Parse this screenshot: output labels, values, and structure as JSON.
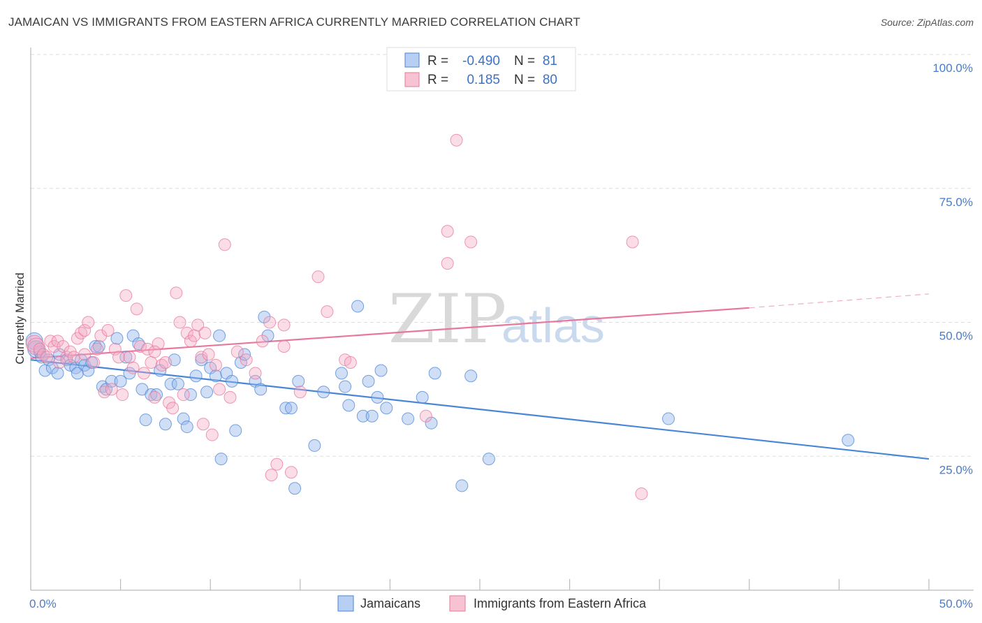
{
  "title": "JAMAICAN VS IMMIGRANTS FROM EASTERN AFRICA CURRENTLY MARRIED CORRELATION CHART",
  "source": "Source: ZipAtlas.com",
  "watermark": {
    "zip": "ZIP",
    "atlas": "atlas"
  },
  "legend_top": {
    "r_label": "R =",
    "n_label": "N =",
    "rows": [
      {
        "r": "-0.490",
        "n": "81",
        "color": "#4a86d8",
        "fill": "#b7cff2"
      },
      {
        "r": "0.185",
        "n": "80",
        "color": "#e8779c",
        "fill": "#f7c3d3"
      }
    ]
  },
  "legend_bottom": [
    {
      "label": "Jamaicans",
      "fill": "#b7cff2",
      "stroke": "#4a86d8"
    },
    {
      "label": "Immigrants from Eastern Africa",
      "fill": "#f7c3d3",
      "stroke": "#e8779c"
    }
  ],
  "chart_data": {
    "type": "scatter",
    "xlabel": "",
    "ylabel": "Currently Married",
    "xlim": [
      0,
      50
    ],
    "ylim": [
      0,
      100
    ],
    "x_tick_labels": [
      "0.0%",
      "50.0%"
    ],
    "y_tick_labels": [
      "100.0%",
      "75.0%",
      "50.0%",
      "25.0%"
    ],
    "y_ticks": [
      100,
      75,
      50,
      25
    ],
    "grid": true,
    "series": [
      {
        "name": "Jamaicans",
        "color": "#4a86d8",
        "trend": {
          "x0": 0,
          "y0": 43.0,
          "x1": 50,
          "y1": 24.5
        },
        "points": [
          [
            0.2,
            46.5
          ],
          [
            0.3,
            45.0
          ],
          [
            0.5,
            44.5
          ],
          [
            0.6,
            43.5
          ],
          [
            0.8,
            41.0
          ],
          [
            1.0,
            43.0
          ],
          [
            1.2,
            41.5
          ],
          [
            1.5,
            40.5
          ],
          [
            1.6,
            44.0
          ],
          [
            2.0,
            43.0
          ],
          [
            2.2,
            42.0
          ],
          [
            2.5,
            41.5
          ],
          [
            2.6,
            40.5
          ],
          [
            2.8,
            43.0
          ],
          [
            3.0,
            42.0
          ],
          [
            3.2,
            41.0
          ],
          [
            3.4,
            42.5
          ],
          [
            3.6,
            45.5
          ],
          [
            3.8,
            45.5
          ],
          [
            4.0,
            38.0
          ],
          [
            4.2,
            37.5
          ],
          [
            4.5,
            39.0
          ],
          [
            4.8,
            47.0
          ],
          [
            5.0,
            39.0
          ],
          [
            5.3,
            43.5
          ],
          [
            5.5,
            40.5
          ],
          [
            5.7,
            47.5
          ],
          [
            6.0,
            46.0
          ],
          [
            6.2,
            37.5
          ],
          [
            6.4,
            31.8
          ],
          [
            6.7,
            36.5
          ],
          [
            7.0,
            36.5
          ],
          [
            7.2,
            41.0
          ],
          [
            7.5,
            31.0
          ],
          [
            7.8,
            38.5
          ],
          [
            8.0,
            43.0
          ],
          [
            8.2,
            38.5
          ],
          [
            8.5,
            32.0
          ],
          [
            8.7,
            30.5
          ],
          [
            8.9,
            36.5
          ],
          [
            9.2,
            40.0
          ],
          [
            9.5,
            43.0
          ],
          [
            9.8,
            37.0
          ],
          [
            10.0,
            41.5
          ],
          [
            10.3,
            40.0
          ],
          [
            10.5,
            47.5
          ],
          [
            10.6,
            24.5
          ],
          [
            10.9,
            40.5
          ],
          [
            11.2,
            39.0
          ],
          [
            11.4,
            29.8
          ],
          [
            11.7,
            42.5
          ],
          [
            11.9,
            44.0
          ],
          [
            12.5,
            39.0
          ],
          [
            12.8,
            37.5
          ],
          [
            13.0,
            51.0
          ],
          [
            13.2,
            47.5
          ],
          [
            14.2,
            34.0
          ],
          [
            14.5,
            34.0
          ],
          [
            14.7,
            19.0
          ],
          [
            14.9,
            39.0
          ],
          [
            15.8,
            27.0
          ],
          [
            16.3,
            37.0
          ],
          [
            17.3,
            40.5
          ],
          [
            17.5,
            38.0
          ],
          [
            17.7,
            34.5
          ],
          [
            18.2,
            53.0
          ],
          [
            18.5,
            32.5
          ],
          [
            18.8,
            39.0
          ],
          [
            19.0,
            32.5
          ],
          [
            19.3,
            36.0
          ],
          [
            19.5,
            41.0
          ],
          [
            19.8,
            34.0
          ],
          [
            21.0,
            32.0
          ],
          [
            21.8,
            36.0
          ],
          [
            22.3,
            31.2
          ],
          [
            22.5,
            40.5
          ],
          [
            24.0,
            19.5
          ],
          [
            24.5,
            40.0
          ],
          [
            25.5,
            24.5
          ],
          [
            35.5,
            32.0
          ],
          [
            45.5,
            28.0
          ]
        ]
      },
      {
        "name": "Immigrants from Eastern Africa",
        "color": "#e8779c",
        "trend": {
          "x0": 0,
          "y0": 43.3,
          "x1": 40,
          "y1": 52.7,
          "dash_to_x": 50,
          "dash_to_y": 55.3
        },
        "points": [
          [
            0.2,
            46.0
          ],
          [
            0.3,
            45.5
          ],
          [
            0.5,
            45.0
          ],
          [
            0.7,
            44.0
          ],
          [
            0.9,
            43.5
          ],
          [
            1.1,
            46.5
          ],
          [
            1.3,
            45.5
          ],
          [
            1.5,
            46.5
          ],
          [
            1.8,
            45.5
          ],
          [
            2.0,
            43.5
          ],
          [
            2.2,
            44.5
          ],
          [
            2.4,
            43.5
          ],
          [
            2.6,
            47.0
          ],
          [
            2.8,
            48.0
          ],
          [
            3.0,
            48.5
          ],
          [
            3.2,
            50.0
          ],
          [
            3.5,
            42.5
          ],
          [
            3.7,
            45.0
          ],
          [
            3.9,
            47.5
          ],
          [
            4.1,
            37.0
          ],
          [
            4.3,
            48.5
          ],
          [
            4.5,
            37.5
          ],
          [
            4.7,
            45.0
          ],
          [
            4.9,
            43.5
          ],
          [
            5.1,
            36.5
          ],
          [
            5.3,
            55.0
          ],
          [
            5.5,
            43.5
          ],
          [
            5.7,
            41.5
          ],
          [
            5.9,
            52.5
          ],
          [
            6.1,
            45.5
          ],
          [
            6.3,
            40.5
          ],
          [
            6.5,
            45.0
          ],
          [
            6.7,
            42.5
          ],
          [
            6.9,
            36.0
          ],
          [
            7.1,
            46.0
          ],
          [
            7.3,
            42.0
          ],
          [
            7.5,
            42.5
          ],
          [
            7.7,
            35.0
          ],
          [
            7.9,
            34.0
          ],
          [
            8.1,
            55.5
          ],
          [
            8.3,
            50.0
          ],
          [
            8.5,
            36.5
          ],
          [
            8.7,
            48.0
          ],
          [
            8.9,
            46.5
          ],
          [
            9.1,
            47.5
          ],
          [
            9.3,
            49.5
          ],
          [
            9.5,
            43.5
          ],
          [
            9.7,
            48.0
          ],
          [
            9.9,
            44.0
          ],
          [
            10.1,
            29.0
          ],
          [
            10.3,
            42.0
          ],
          [
            10.5,
            37.5
          ],
          [
            10.8,
            64.5
          ],
          [
            11.1,
            36.0
          ],
          [
            11.5,
            44.5
          ],
          [
            12.0,
            43.0
          ],
          [
            12.5,
            40.5
          ],
          [
            12.9,
            46.5
          ],
          [
            13.3,
            50.0
          ],
          [
            13.7,
            23.5
          ],
          [
            13.4,
            21.5
          ],
          [
            14.1,
            49.5
          ],
          [
            14.1,
            45.5
          ],
          [
            14.5,
            22.0
          ],
          [
            15.0,
            37.0
          ],
          [
            16.0,
            58.5
          ],
          [
            16.5,
            52.0
          ],
          [
            17.5,
            43.0
          ],
          [
            17.8,
            42.5
          ],
          [
            22.0,
            32.5
          ],
          [
            23.2,
            67.0
          ],
          [
            23.2,
            61.0
          ],
          [
            23.7,
            84.0
          ],
          [
            24.5,
            65.0
          ],
          [
            33.5,
            65.0
          ],
          [
            34.0,
            18.0
          ],
          [
            9.6,
            31.0
          ],
          [
            6.9,
            44.5
          ],
          [
            3.0,
            44.0
          ],
          [
            1.6,
            42.5
          ]
        ]
      }
    ]
  }
}
